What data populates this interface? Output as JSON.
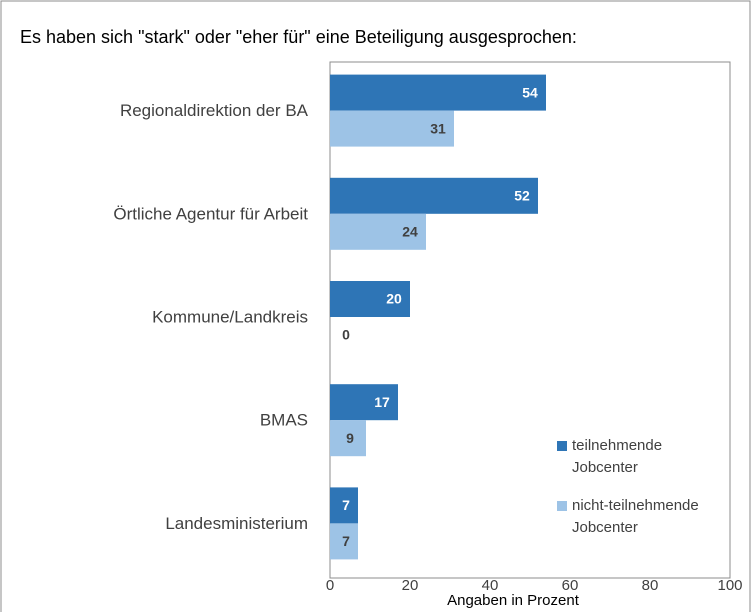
{
  "chart_data": {
    "type": "hbar",
    "title": "Es haben sich \"stark\" oder \"eher für\" eine Beteiligung ausgesprochen:",
    "categories": [
      "Regionaldirektion der BA",
      "Örtliche Agentur für Arbeit",
      "Kommune/Landkreis",
      "BMAS",
      "Landesministerium"
    ],
    "series": [
      {
        "name": "teilnehmende Jobcenter",
        "color": "#2e75b6",
        "values": [
          54,
          52,
          20,
          17,
          7
        ]
      },
      {
        "name": "nicht-teilnehmende Jobcenter",
        "color": "#9dc3e6",
        "values": [
          31,
          24,
          0,
          9,
          7
        ]
      }
    ],
    "xlim": [
      0,
      100
    ],
    "xticks": [
      0,
      20,
      40,
      60,
      80,
      100
    ],
    "xlabel": "Angaben in Prozent"
  }
}
